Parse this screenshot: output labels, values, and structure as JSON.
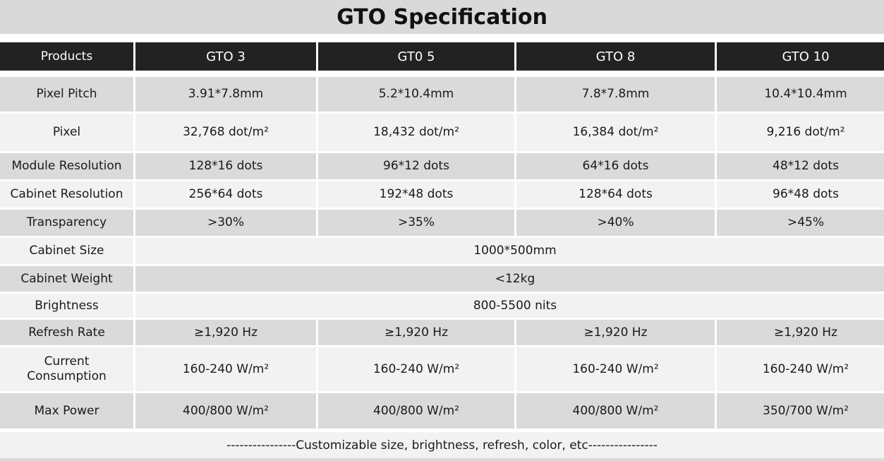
{
  "title": "GTO Specification",
  "columns": [
    "Products",
    "GTO 3",
    "GT0 5",
    "GTO 8",
    "GTO 10"
  ],
  "rows": [
    {
      "label": "Pixel Pitch",
      "values": [
        "3.91*7.8mm",
        "5.2*10.4mm",
        "7.8*7.8mm",
        "10.4*10.4mm"
      ]
    },
    {
      "label": "Pixel",
      "values": [
        "32,768 dot/m²",
        "18,432 dot/m²",
        "16,384 dot/m²",
        "9,216 dot/m²"
      ]
    },
    {
      "label": "Module Resolution",
      "values": [
        "128*16 dots",
        "96*12 dots",
        "64*16 dots",
        "48*12 dots"
      ]
    },
    {
      "label": "Cabinet Resolution",
      "values": [
        "256*64 dots",
        "192*48 dots",
        "128*64 dots",
        "96*48 dots"
      ]
    },
    {
      "label": "Transparency",
      "values": [
        ">30%",
        ">35%",
        ">40%",
        ">45%"
      ]
    },
    {
      "label": "Cabinet Size",
      "merged": "1000*500mm"
    },
    {
      "label": "Cabinet Weight",
      "merged": "<12kg"
    },
    {
      "label": "Brightness",
      "merged": "800-5500 nits"
    },
    {
      "label": "Refresh Rate",
      "values": [
        "≥1,920 Hz",
        "≥1,920 Hz",
        "≥1,920 Hz",
        "≥1,920 Hz"
      ]
    },
    {
      "label_lines": [
        "Current",
        "Consumption"
      ],
      "values": [
        "160-240 W/m²",
        "160-240 W/m²",
        "160-240 W/m²",
        "160-240 W/m²"
      ]
    },
    {
      "label": "Max Power",
      "values": [
        "400/800 W/m²",
        "400/800 W/m²",
        "400/800 W/m²",
        "350/700 W/m²"
      ]
    }
  ],
  "footer": "----------------Customizable size, brightness, refresh, color, etc----------------"
}
